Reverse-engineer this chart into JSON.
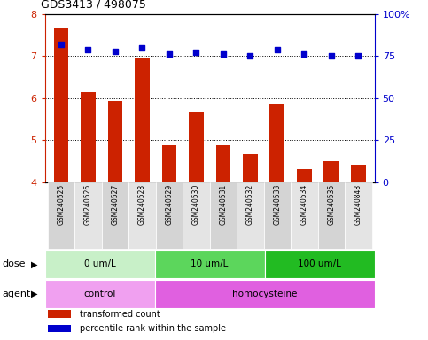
{
  "title": "GDS3413 / 498075",
  "samples": [
    "GSM240525",
    "GSM240526",
    "GSM240527",
    "GSM240528",
    "GSM240529",
    "GSM240530",
    "GSM240531",
    "GSM240532",
    "GSM240533",
    "GSM240534",
    "GSM240535",
    "GSM240848"
  ],
  "transformed_count": [
    7.65,
    6.15,
    5.93,
    6.97,
    4.88,
    5.65,
    4.88,
    4.67,
    5.87,
    4.32,
    4.5,
    4.42
  ],
  "percentile_rank": [
    82,
    79,
    78,
    80,
    76,
    77,
    76,
    75,
    79,
    76,
    75,
    75
  ],
  "ylim_left": [
    4,
    8
  ],
  "ylim_right": [
    0,
    100
  ],
  "yticks_left": [
    4,
    5,
    6,
    7,
    8
  ],
  "yticks_right": [
    0,
    25,
    50,
    75,
    100
  ],
  "ytick_labels_right": [
    "0",
    "25",
    "50",
    "75",
    "100%"
  ],
  "dose_groups": [
    {
      "label": "0 um/L",
      "start": 0,
      "end": 4,
      "color": "#c8f0c8"
    },
    {
      "label": "10 um/L",
      "start": 4,
      "end": 8,
      "color": "#5cd65c"
    },
    {
      "label": "100 um/L",
      "start": 8,
      "end": 12,
      "color": "#22bb22"
    }
  ],
  "agent_groups": [
    {
      "label": "control",
      "start": 0,
      "end": 4,
      "color": "#f0a0f0"
    },
    {
      "label": "homocysteine",
      "start": 4,
      "end": 12,
      "color": "#e060e0"
    }
  ],
  "bar_color": "#cc2200",
  "dot_color": "#0000cc",
  "grid_color": "#000000",
  "axis_left_color": "#cc2200",
  "axis_right_color": "#0000cc",
  "background_color": "#ffffff",
  "plot_bg_color": "#ffffff",
  "legend_items": [
    {
      "label": "transformed count",
      "color": "#cc2200"
    },
    {
      "label": "percentile rank within the sample",
      "color": "#0000cc"
    }
  ],
  "sample_bg_even": "#d4d4d4",
  "sample_bg_odd": "#e4e4e4"
}
